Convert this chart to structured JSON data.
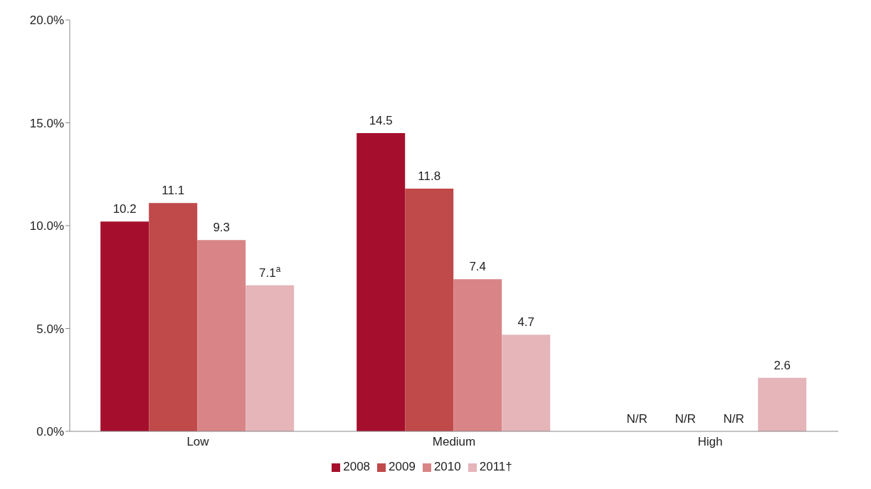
{
  "chart_data": {
    "type": "bar",
    "categories": [
      "Low",
      "Medium",
      "High"
    ],
    "series": [
      {
        "name": "2008",
        "color": "#a50f2d",
        "values": [
          10.2,
          14.5,
          null
        ],
        "value_labels": [
          "10.2",
          "14.5",
          "N/R"
        ]
      },
      {
        "name": "2009",
        "color": "#c0494a",
        "values": [
          11.1,
          11.8,
          null
        ],
        "value_labels": [
          "11.1",
          "11.8",
          "N/R"
        ]
      },
      {
        "name": "2010",
        "color": "#d98486",
        "values": [
          9.3,
          7.4,
          null
        ],
        "value_labels": [
          "9.3",
          "7.4",
          "N/R"
        ]
      },
      {
        "name": "2011†",
        "color": "#e5b5b9",
        "values": [
          7.1,
          4.7,
          2.6
        ],
        "value_labels": [
          "7.1$^{a}$",
          "4.7",
          "2.6"
        ]
      }
    ],
    "ylim": [
      0,
      20
    ],
    "yticks": [
      {
        "value": 0,
        "label": "0.0%"
      },
      {
        "value": 5,
        "label": "5.0%"
      },
      {
        "value": 10,
        "label": "10.0%"
      },
      {
        "value": 15,
        "label": "15.0%"
      },
      {
        "value": 20,
        "label": "20.0%"
      }
    ],
    "grid": false,
    "legend": "bottom"
  }
}
